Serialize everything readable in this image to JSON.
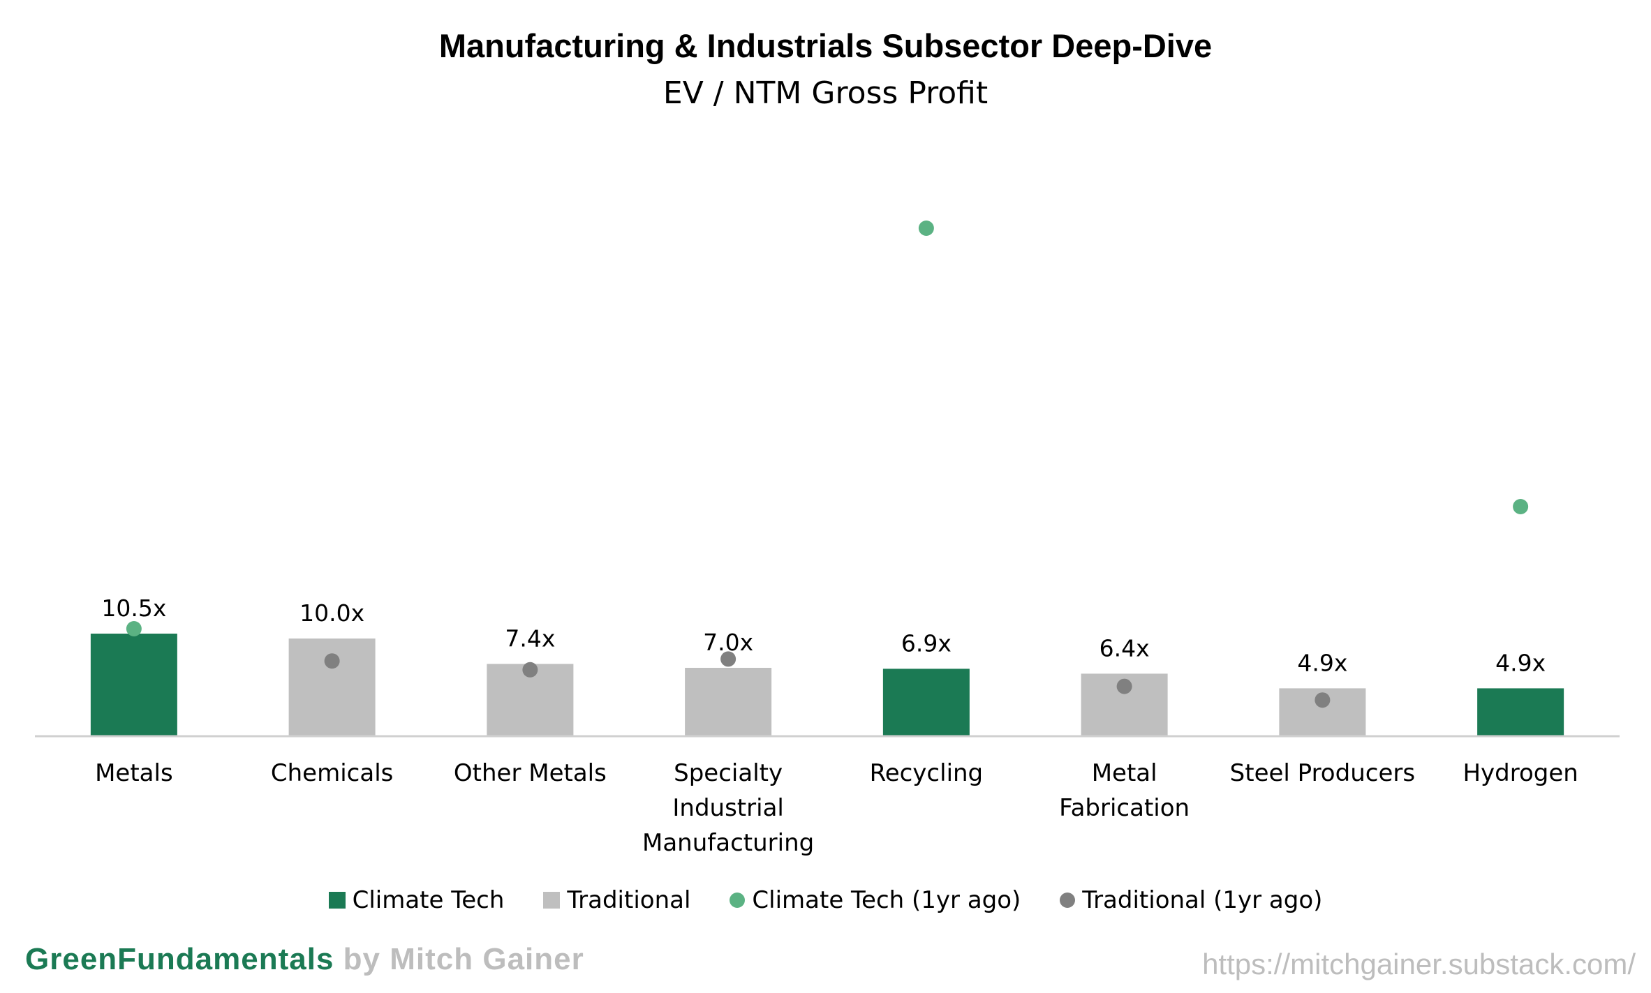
{
  "chart_data": {
    "type": "bar",
    "title": "Manufacturing & Industrials Subsector Deep-Dive",
    "subtitle": "EV / NTM Gross Profit",
    "categories": [
      "Metals",
      "Chemicals",
      "Other Metals",
      "Specialty Industrial Manufacturing",
      "Recycling",
      "Metal Fabrication",
      "Steel Producers",
      "Hydrogen"
    ],
    "category_lines": [
      [
        "Metals"
      ],
      [
        "Chemicals"
      ],
      [
        "Other Metals"
      ],
      [
        "Specialty",
        "Industrial",
        "Manufacturing"
      ],
      [
        "Recycling"
      ],
      [
        "Metal",
        "Fabrication"
      ],
      [
        "Steel Producers"
      ],
      [
        "Hydrogen"
      ]
    ],
    "values": [
      10.5,
      10.0,
      7.4,
      7.0,
      6.9,
      6.4,
      4.9,
      4.9
    ],
    "data_labels": [
      "10.5x",
      "10.0x",
      "7.4x",
      "7.0x",
      "6.9x",
      "6.4x",
      "4.9x",
      "4.9x"
    ],
    "group": [
      "Climate Tech",
      "Traditional",
      "Traditional",
      "Traditional",
      "Climate Tech",
      "Traditional",
      "Traditional",
      "Climate Tech"
    ],
    "one_year_ago": [
      11.0,
      7.7,
      6.8,
      7.9,
      52.0,
      5.1,
      3.7,
      23.5
    ],
    "ylim": [
      0,
      60
    ],
    "grid": false,
    "legend_position": "bottom",
    "series": [
      {
        "name": "Climate Tech",
        "kind": "bar",
        "color": "#1b7a54"
      },
      {
        "name": "Traditional",
        "kind": "bar",
        "color": "#bfbfbf"
      },
      {
        "name": "Climate Tech (1yr ago)",
        "kind": "dot",
        "color": "#5bb283"
      },
      {
        "name": "Traditional (1yr ago)",
        "kind": "dot",
        "color": "#808080"
      }
    ]
  },
  "branding": {
    "green_part": "GreenFundamentals",
    "gray_part": "by Mitch Gainer",
    "url": "https://mitchgainer.substack.com/"
  }
}
